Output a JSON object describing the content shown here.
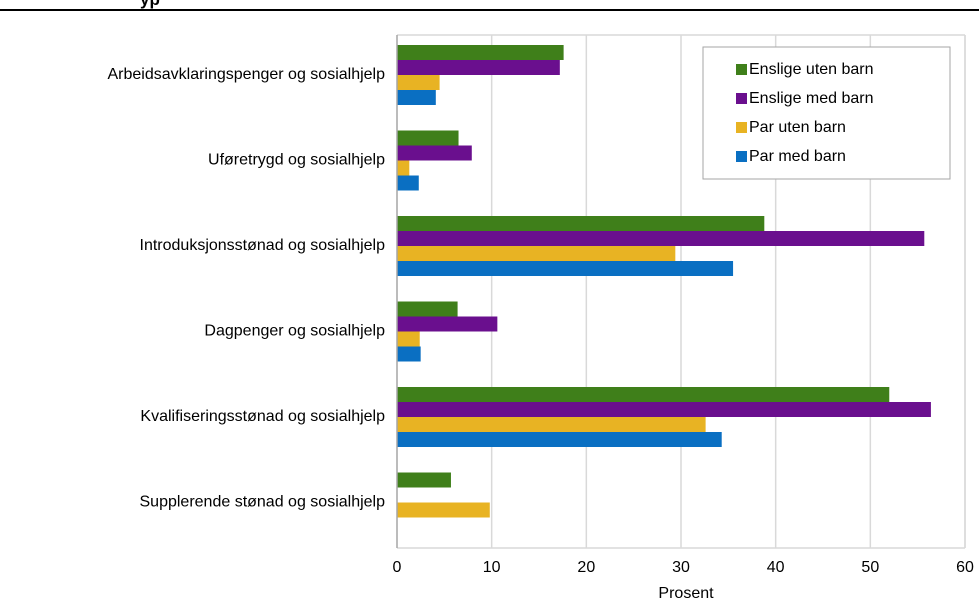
{
  "header": {
    "title_fragment": "yp"
  },
  "chart_data": {
    "type": "bar",
    "orientation": "horizontal",
    "categories": [
      "Arbeidsavklaringspenger og sosialhjelp",
      "Uføretrygd og sosialhjelp",
      "Introduksjonsstønad og sosialhjelp",
      "Dagpenger og sosialhjelp",
      "Kvalifiseringsstønad og sosialhjelp",
      "Supplerende stønad og sosialhjelp"
    ],
    "series": [
      {
        "name": "Enslige uten barn",
        "color": "#3f7f1a",
        "values": [
          17.6,
          6.5,
          38.8,
          6.4,
          52.0,
          5.7
        ]
      },
      {
        "name": "Enslige med barn",
        "color": "#6a0f8e",
        "values": [
          17.2,
          7.9,
          55.7,
          10.6,
          56.4,
          null
        ]
      },
      {
        "name": "Par uten barn",
        "color": "#e8b323",
        "values": [
          4.5,
          1.3,
          29.4,
          2.4,
          32.6,
          9.8
        ]
      },
      {
        "name": "Par med barn",
        "color": "#0a6fc2",
        "values": [
          4.1,
          2.3,
          35.5,
          2.5,
          34.3,
          null
        ]
      }
    ],
    "xlabel": "Prosent",
    "ylabel": "",
    "xlim": [
      0,
      60
    ],
    "xticks": [
      0,
      10,
      20,
      30,
      40,
      50,
      60
    ],
    "grid": true,
    "legend_position": "top-right"
  }
}
